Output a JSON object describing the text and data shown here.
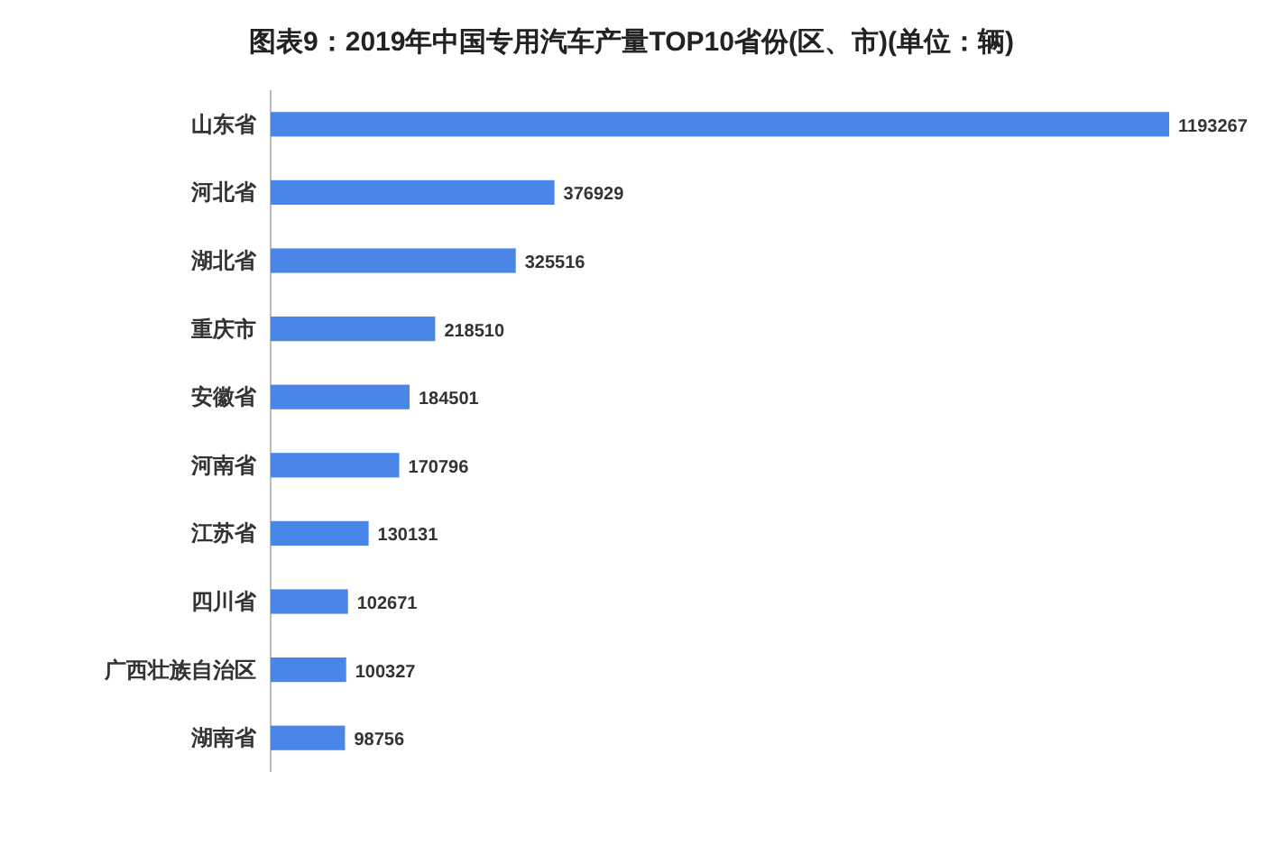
{
  "chart_data": {
    "type": "bar",
    "orientation": "horizontal",
    "title": "图表9：2019年中国专用汽车产量TOP10省份(区、市)(单位：辆)",
    "categories": [
      "山东省",
      "河北省",
      "湖北省",
      "重庆市",
      "安徽省",
      "河南省",
      "江苏省",
      "四川省",
      "广西壮族自治区",
      "湖南省"
    ],
    "values": [
      1193267,
      376929,
      325516,
      218510,
      184501,
      170796,
      130131,
      102671,
      100327,
      98756
    ],
    "color": "#4a86e8",
    "data_labels": true
  }
}
